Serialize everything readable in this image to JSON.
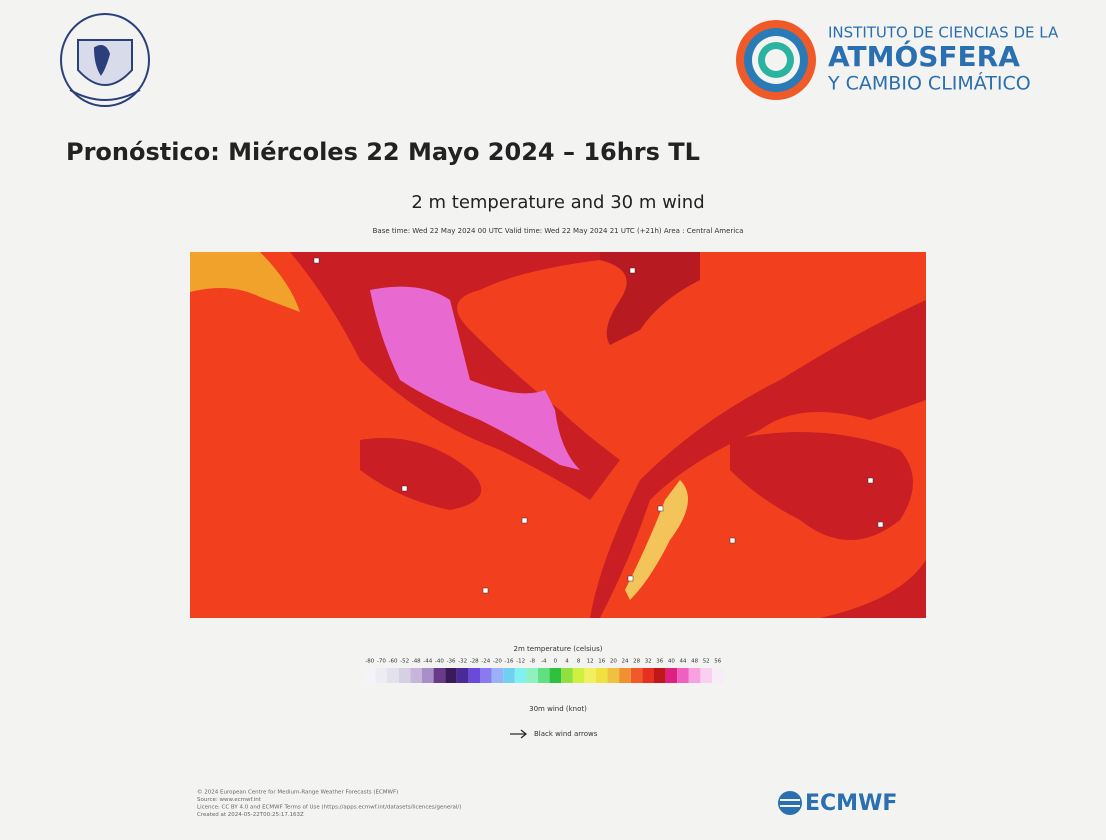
{
  "header": {
    "institute_line1": "INSTITUTO DE CIENCIAS DE LA",
    "institute_line2": "ATMÓSFERA",
    "institute_line3": "Y CAMBIO CLIMÁTICO",
    "title": "Pronóstico: Miércoles 22 Mayo 2024 – 16hrs TL"
  },
  "map": {
    "title": "2 m temperature and 30 m wind",
    "subtitle": "Base time: Wed 22 May 2024 00 UTC Valid time: Wed 22 May 2024 21 UTC (+21h) Area : Central America"
  },
  "colorbar": {
    "label": "2m temperature (celsius)",
    "ticks": [
      "-80",
      "-70",
      "-60",
      "-52",
      "-48",
      "-44",
      "-40",
      "-36",
      "-32",
      "-28",
      "-24",
      "-20",
      "-16",
      "-12",
      "-8",
      "-4",
      "0",
      "4",
      "8",
      "12",
      "16",
      "20",
      "24",
      "28",
      "32",
      "36",
      "40",
      "44",
      "48",
      "52",
      "56"
    ]
  },
  "wind_legend": {
    "title": "30m wind (knot)",
    "label": "Black wind arrows"
  },
  "footer": {
    "lines": [
      "© 2024 European Centre for Medium-Range Weather Forecasts (ECMWF)",
      "Source: www.ecmwf.int",
      "Licence: CC BY 4.0 and ECMWF Terms of Use (https://apps.ecmwf.int/datasets/licences/general/)",
      "Created at 2024-05-22T00:25:17.163Z"
    ],
    "brand": "ECMWF"
  }
}
